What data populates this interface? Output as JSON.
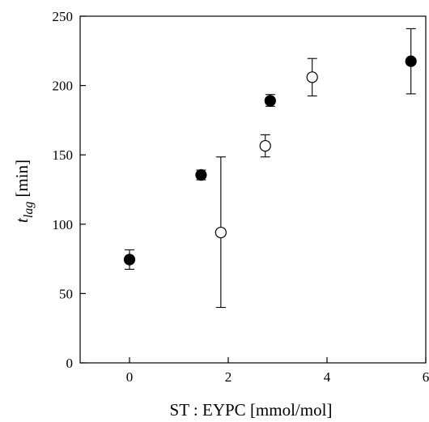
{
  "chart_data": {
    "type": "scatter",
    "title": "",
    "xlabel": "ST : EYPC [mmol/mol]",
    "ylabel_main": "t",
    "ylabel_sub": "lag",
    "ylabel_unit": " [min]",
    "xlim": [
      -1,
      6
    ],
    "ylim": [
      0,
      250
    ],
    "xticks": [
      0,
      2,
      4,
      6
    ],
    "yticks": [
      0,
      50,
      100,
      150,
      200,
      250
    ],
    "grid": false,
    "legend": "none",
    "series": [
      {
        "marker": "filled-circle",
        "color": "#000000",
        "points": [
          {
            "x": 0.0,
            "y": 74.5,
            "err_low": 67.5,
            "err_high": 81.5
          },
          {
            "x": 1.45,
            "y": 135.5,
            "err_low": 132.0,
            "err_high": 139.0
          },
          {
            "x": 2.85,
            "y": 189.0,
            "err_low": 185.0,
            "err_high": 193.5
          },
          {
            "x": 5.7,
            "y": 217.5,
            "err_low": 194.0,
            "err_high": 241.0
          }
        ]
      },
      {
        "marker": "open-circle",
        "color": "#000000",
        "points": [
          {
            "x": 1.85,
            "y": 94.0,
            "err_low": 40.0,
            "err_high": 148.5
          },
          {
            "x": 2.75,
            "y": 156.5,
            "err_low": 148.5,
            "err_high": 164.5
          },
          {
            "x": 3.7,
            "y": 206.0,
            "err_low": 192.5,
            "err_high": 219.5
          }
        ]
      }
    ]
  }
}
